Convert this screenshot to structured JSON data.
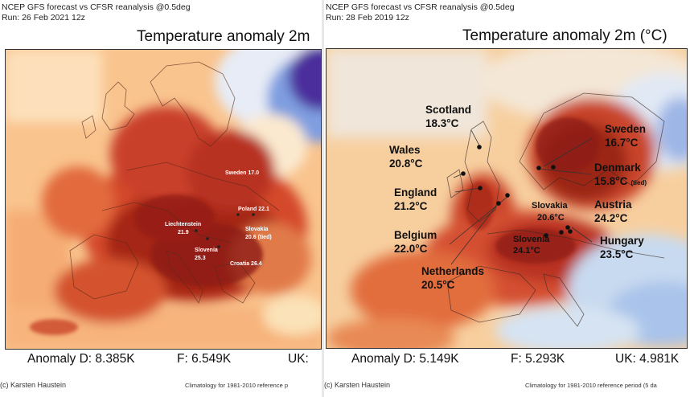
{
  "left_panel": {
    "header_line1": "NCEP GFS forecast vs CFSR reanalysis @0.5deg",
    "header_line2": "Run: 26 Feb 2021 12z",
    "title": "Temperature anomaly 2m",
    "labels": [
      {
        "name": "sweden",
        "line1": "Sweden 17.0",
        "line2": ""
      },
      {
        "name": "poland",
        "line1": "Poland 22.1",
        "line2": ""
      },
      {
        "name": "liechtenstein",
        "line1": "Liechtenstein",
        "line2": "21.9"
      },
      {
        "name": "slovakia",
        "line1": "Slovakia",
        "line2": "20.6 (tied)"
      },
      {
        "name": "slovenia",
        "line1": "Slovenia",
        "line2": "25.3"
      },
      {
        "name": "croatia",
        "line1": "Croatia 26.4",
        "line2": ""
      }
    ],
    "footer_anomaly": "Anomaly D: 8.385K",
    "footer_f": "F: 6.549K",
    "footer_uk": "UK:",
    "credit": "(c) Karsten Haustein",
    "climatology": "Climatology for 1981-2010 reference p"
  },
  "right_panel": {
    "header_line1": "NCEP GFS forecast vs CFSR reanalysis @0.5deg",
    "header_line2": "Run: 28 Feb 2019 12z",
    "title": "Temperature anomaly 2m (°C)",
    "labels": [
      {
        "name": "scotland",
        "line1": "Scotland",
        "line2": "18.3°C",
        "note": ""
      },
      {
        "name": "wales",
        "line1": "Wales",
        "line2": "20.8°C",
        "note": ""
      },
      {
        "name": "england",
        "line1": "England",
        "line2": "21.2°C",
        "note": ""
      },
      {
        "name": "belgium",
        "line1": "Belgium",
        "line2": "22.0°C",
        "note": ""
      },
      {
        "name": "netherlands",
        "line1": "Netherlands",
        "line2": "20.5°C",
        "note": ""
      },
      {
        "name": "sweden",
        "line1": "Sweden",
        "line2": "16.7°C",
        "note": ""
      },
      {
        "name": "denmark",
        "line1": "Denmark",
        "line2": "15.8°C",
        "note": "(tied)"
      },
      {
        "name": "austria",
        "line1": "Austria",
        "line2": "24.2°C",
        "note": ""
      },
      {
        "name": "hungary",
        "line1": "Hungary",
        "line2": "23.5°C",
        "note": ""
      },
      {
        "name": "slovakia",
        "line1": "Slovakia",
        "line2": "20.6°C",
        "note": ""
      },
      {
        "name": "slovenia",
        "line1": "Slovenia",
        "line2": "24.1°C",
        "note": ""
      }
    ],
    "footer_anomaly": "Anomaly D: 5.149K",
    "footer_f": "F: 5.293K",
    "footer_uk": "UK: 4.981K",
    "credit": "(c) Karsten Haustein",
    "climatology": "Climatology for 1981-2010 reference period (5 da"
  },
  "colors": {
    "sea_warm": "#f6b47c",
    "land_hot": "#c43a22",
    "land_very_hot": "#8e1c12",
    "cold_blue": "#5d7fd2",
    "deep_purple": "#4b2f9c",
    "mild": "#fbe2b8",
    "neutral": "#f4f4f0"
  }
}
